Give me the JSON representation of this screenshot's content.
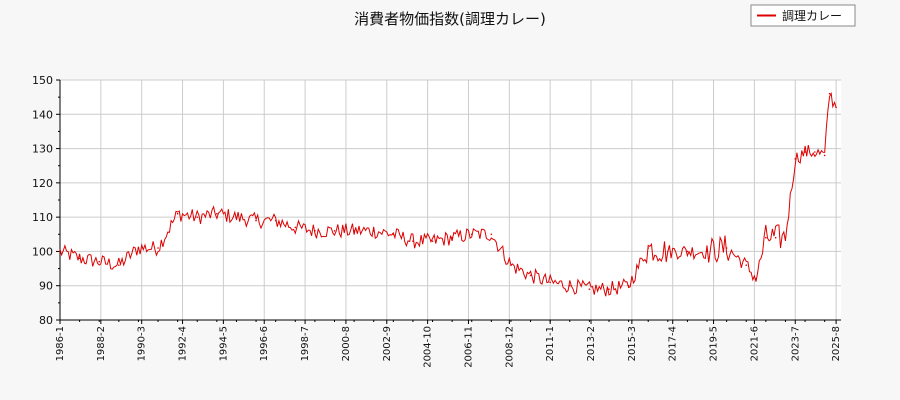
{
  "chart_data": {
    "type": "line",
    "title": "消費者物価指数(調理カレー)",
    "xlabel": "",
    "ylabel": "",
    "ylim": [
      80,
      150
    ],
    "yticks": [
      80,
      90,
      100,
      110,
      120,
      130,
      140,
      150
    ],
    "xticks": [
      "1986-1",
      "1988-2",
      "1990-3",
      "1992-4",
      "1994-5",
      "1996-6",
      "1998-7",
      "2000-8",
      "2002-9",
      "2004-10",
      "2006-11",
      "2008-12",
      "2011-1",
      "2013-2",
      "2015-3",
      "2017-4",
      "2019-5",
      "2021-6",
      "2023-7",
      "2025-8"
    ],
    "grid": true,
    "legend_position": "top-right",
    "colors": {
      "line": "#dd0000",
      "grid": "#cccccc",
      "axis": "#000000",
      "background": "#f7f7f7",
      "plot_bg": "#ffffff"
    },
    "series": [
      {
        "name": "調理カレー",
        "x": [
          "1986-01",
          "1987-01",
          "1988-01",
          "1989-01",
          "1990-01",
          "1991-01",
          "1992-01",
          "1993-01",
          "1994-01",
          "1995-01",
          "1996-01",
          "1997-01",
          "1998-01",
          "1999-01",
          "2000-01",
          "2001-01",
          "2002-01",
          "2003-01",
          "2004-01",
          "2005-01",
          "2006-01",
          "2007-01",
          "2008-01",
          "2009-01",
          "2010-01",
          "2011-01",
          "2012-01",
          "2013-01",
          "2014-01",
          "2015-01",
          "2016-01",
          "2017-01",
          "2018-01",
          "2019-01",
          "2020-01",
          "2021-01",
          "2021-07",
          "2022-01",
          "2022-07",
          "2023-01",
          "2023-07",
          "2024-01",
          "2024-07",
          "2025-01",
          "2025-04",
          "2025-08"
        ],
        "values": [
          100,
          98,
          97,
          96,
          101,
          101,
          111,
          110,
          111,
          110,
          109,
          109,
          107,
          106,
          106,
          106,
          106,
          105,
          103,
          103,
          104,
          105,
          105,
          96,
          93,
          91,
          90,
          89,
          89,
          90,
          101,
          100,
          100,
          100,
          101,
          96,
          92,
          104,
          104,
          104,
          127,
          129,
          129,
          128,
          146,
          142
        ]
      }
    ]
  }
}
